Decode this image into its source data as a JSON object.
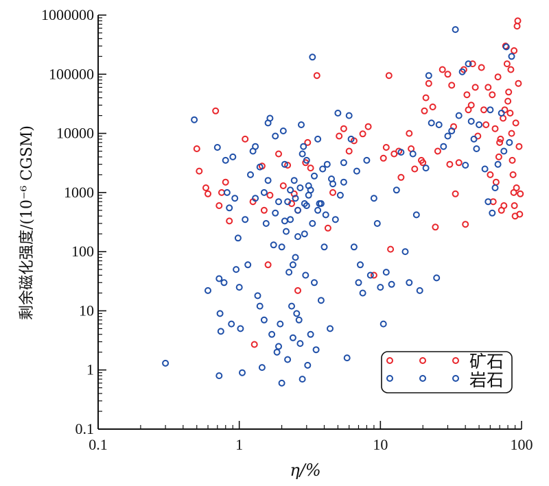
{
  "chart_data": {
    "type": "scatter",
    "xlabel": "η/%",
    "ylabel": "剩余磁化强度/(10⁻⁶ CGSM)",
    "x_scale": "log",
    "y_scale": "log",
    "xlim": [
      0.1,
      100
    ],
    "ylim": [
      0.1,
      1000000
    ],
    "x_tick_labels": [
      "0.1",
      "1",
      "10",
      "100"
    ],
    "y_tick_labels": [
      "0.1",
      "1",
      "10",
      "100",
      "1000",
      "10000",
      "100000",
      "1000000"
    ],
    "legend_position": "bottom-right",
    "series": [
      {
        "name": "矿石",
        "color": "#e8262c",
        "points": [
          [
            0.68,
            24000
          ],
          [
            0.5,
            5500
          ],
          [
            0.52,
            2300
          ],
          [
            0.58,
            1200
          ],
          [
            0.6,
            950
          ],
          [
            0.75,
            1000
          ],
          [
            0.72,
            600
          ],
          [
            0.8,
            1500
          ],
          [
            0.85,
            330
          ],
          [
            1.1,
            8000
          ],
          [
            1.25,
            700
          ],
          [
            1.45,
            2800
          ],
          [
            1.5,
            500
          ],
          [
            1.65,
            900
          ],
          [
            1.9,
            4500
          ],
          [
            2.05,
            1300
          ],
          [
            2.2,
            2900
          ],
          [
            2.35,
            650
          ],
          [
            2.45,
            950
          ],
          [
            2.6,
            500
          ],
          [
            2.95,
            3200
          ],
          [
            3.05,
            7000
          ],
          [
            3.2,
            2600
          ],
          [
            3.55,
            95000
          ],
          [
            1.28,
            2.7
          ],
          [
            1.6,
            60
          ],
          [
            2.6,
            22
          ],
          [
            4.25,
            250
          ],
          [
            4.6,
            1000
          ],
          [
            5.1,
            9000
          ],
          [
            5.5,
            12000
          ],
          [
            6.0,
            5000
          ],
          [
            6.5,
            7500
          ],
          [
            7.5,
            9800
          ],
          [
            8.2,
            13000
          ],
          [
            9.0,
            40
          ],
          [
            10.5,
            3800
          ],
          [
            11.0,
            5800
          ],
          [
            11.5,
            95000
          ],
          [
            11.8,
            110
          ],
          [
            12.5,
            4500
          ],
          [
            13.5,
            5000
          ],
          [
            14.0,
            1800
          ],
          [
            16.0,
            10000
          ],
          [
            16.5,
            5500
          ],
          [
            17.5,
            2500
          ],
          [
            19.5,
            3500
          ],
          [
            20.0,
            3200
          ],
          [
            20.5,
            24000
          ],
          [
            21.0,
            40000
          ],
          [
            22.0,
            70000
          ],
          [
            23.5,
            28000
          ],
          [
            24.5,
            260
          ],
          [
            25.5,
            5000
          ],
          [
            27.5,
            120000
          ],
          [
            30.0,
            100000
          ],
          [
            31.0,
            3000
          ],
          [
            32.0,
            65000
          ],
          [
            33.0,
            13000
          ],
          [
            34.0,
            950
          ],
          [
            36.0,
            3200
          ],
          [
            39.0,
            120000
          ],
          [
            40.0,
            290
          ],
          [
            41.0,
            45000
          ],
          [
            42.0,
            25000
          ],
          [
            44.0,
            30000
          ],
          [
            45.0,
            150000
          ],
          [
            47.0,
            60000
          ],
          [
            49.0,
            9000
          ],
          [
            52.0,
            130000
          ],
          [
            54.0,
            25000
          ],
          [
            56.0,
            14000
          ],
          [
            58.0,
            60000
          ],
          [
            60.0,
            2000
          ],
          [
            62.0,
            45000
          ],
          [
            65.0,
            12000
          ],
          [
            68.0,
            90000
          ],
          [
            70.0,
            7000
          ],
          [
            72.0,
            500
          ],
          [
            75.0,
            600
          ],
          [
            77.0,
            300000
          ],
          [
            79.0,
            150000
          ],
          [
            81.0,
            50000
          ],
          [
            83.0,
            22000
          ],
          [
            85.0,
            10000
          ],
          [
            86.0,
            3500
          ],
          [
            87.0,
            2000
          ],
          [
            88.0,
            1000
          ],
          [
            89.0,
            600
          ],
          [
            90.0,
            400
          ],
          [
            91.0,
            15000
          ],
          [
            92.0,
            1200
          ],
          [
            93.0,
            650000
          ],
          [
            94.0,
            800000
          ],
          [
            95.0,
            70000
          ],
          [
            96.0,
            6000
          ],
          [
            97.0,
            430
          ],
          [
            98.0,
            950
          ],
          [
            88.5,
            250000
          ],
          [
            84.0,
            120000
          ],
          [
            80.0,
            35000
          ],
          [
            76.0,
            25000
          ],
          [
            74.0,
            18000
          ],
          [
            71.0,
            8000
          ],
          [
            69.0,
            4000
          ],
          [
            66.0,
            1500
          ],
          [
            63.0,
            700
          ]
        ]
      },
      {
        "name": "岩石",
        "color": "#1f4fa8",
        "points": [
          [
            0.3,
            1.3
          ],
          [
            0.48,
            17000
          ],
          [
            0.6,
            22
          ],
          [
            0.7,
            5800
          ],
          [
            0.72,
            35
          ],
          [
            0.73,
            9
          ],
          [
            0.74,
            4.5
          ],
          [
            0.72,
            0.8
          ],
          [
            0.78,
            30
          ],
          [
            0.8,
            3500
          ],
          [
            0.82,
            1000
          ],
          [
            0.85,
            550
          ],
          [
            0.88,
            6
          ],
          [
            0.9,
            4000
          ],
          [
            0.93,
            800
          ],
          [
            0.95,
            50
          ],
          [
            0.98,
            170
          ],
          [
            1.0,
            25
          ],
          [
            1.02,
            5
          ],
          [
            1.05,
            0.9
          ],
          [
            1.1,
            350
          ],
          [
            1.15,
            60
          ],
          [
            1.2,
            2000
          ],
          [
            1.25,
            5000
          ],
          [
            1.3,
            6000
          ],
          [
            1.35,
            18
          ],
          [
            1.4,
            12
          ],
          [
            1.45,
            1.1
          ],
          [
            1.5,
            7
          ],
          [
            1.55,
            300
          ],
          [
            1.6,
            15000
          ],
          [
            1.65,
            18000
          ],
          [
            1.7,
            4
          ],
          [
            1.75,
            130
          ],
          [
            1.8,
            9000
          ],
          [
            1.85,
            2
          ],
          [
            1.9,
            2.5
          ],
          [
            1.95,
            6
          ],
          [
            2.0,
            0.6
          ],
          [
            2.05,
            11000
          ],
          [
            2.1,
            3000
          ],
          [
            2.15,
            220
          ],
          [
            2.2,
            1.5
          ],
          [
            2.25,
            45
          ],
          [
            2.3,
            1100
          ],
          [
            2.35,
            12
          ],
          [
            2.4,
            3.5
          ],
          [
            2.45,
            1600
          ],
          [
            2.5,
            80
          ],
          [
            2.55,
            9
          ],
          [
            2.6,
            500
          ],
          [
            2.65,
            7
          ],
          [
            2.7,
            2.8
          ],
          [
            2.75,
            14000
          ],
          [
            2.8,
            0.7
          ],
          [
            2.85,
            6000
          ],
          [
            2.9,
            200
          ],
          [
            2.95,
            40
          ],
          [
            3.0,
            3500
          ],
          [
            3.05,
            1.2
          ],
          [
            3.1,
            900
          ],
          [
            3.2,
            4
          ],
          [
            3.3,
            195000
          ],
          [
            3.4,
            30
          ],
          [
            3.5,
            2.2
          ],
          [
            3.6,
            8000
          ],
          [
            3.7,
            650
          ],
          [
            3.8,
            15
          ],
          [
            3.9,
            2500
          ],
          [
            4.0,
            120
          ],
          [
            4.2,
            3000
          ],
          [
            4.4,
            5
          ],
          [
            4.6,
            1400
          ],
          [
            4.8,
            350
          ],
          [
            5.0,
            22000
          ],
          [
            5.2,
            900
          ],
          [
            5.5,
            3200
          ],
          [
            5.8,
            1.6
          ],
          [
            6.0,
            20000
          ],
          [
            6.2,
            8000
          ],
          [
            6.5,
            120
          ],
          [
            6.8,
            2300
          ],
          [
            7.0,
            30
          ],
          [
            7.2,
            60
          ],
          [
            7.5,
            20
          ],
          [
            8.0,
            3500
          ],
          [
            8.5,
            40
          ],
          [
            9.0,
            800
          ],
          [
            9.5,
            300
          ],
          [
            10.0,
            25
          ],
          [
            10.5,
            6
          ],
          [
            11.0,
            45
          ],
          [
            12.0,
            28
          ],
          [
            13.0,
            1100
          ],
          [
            14.0,
            4800
          ],
          [
            15.0,
            100
          ],
          [
            16.0,
            30
          ],
          [
            17.0,
            4500
          ],
          [
            18.0,
            420
          ],
          [
            19.0,
            22
          ],
          [
            21.0,
            2600
          ],
          [
            22.0,
            95000
          ],
          [
            23.0,
            15000
          ],
          [
            25.0,
            36
          ],
          [
            26.0,
            14000
          ],
          [
            28.0,
            6000
          ],
          [
            30.0,
            9000
          ],
          [
            32.0,
            11000
          ],
          [
            34.0,
            570000
          ],
          [
            36.0,
            20000
          ],
          [
            38.0,
            110000
          ],
          [
            40.0,
            2900
          ],
          [
            42.0,
            150000
          ],
          [
            44.0,
            16000
          ],
          [
            46.0,
            8000
          ],
          [
            48.0,
            5500
          ],
          [
            50.0,
            14000
          ],
          [
            55.0,
            2500
          ],
          [
            58.0,
            700
          ],
          [
            60.0,
            25000
          ],
          [
            62.0,
            450
          ],
          [
            65.0,
            1200
          ],
          [
            68.0,
            3000
          ],
          [
            72.0,
            22000
          ],
          [
            75.0,
            5000
          ],
          [
            78.0,
            290000
          ],
          [
            82.0,
            7000
          ],
          [
            85.0,
            200000
          ],
          [
            1.3,
            800
          ],
          [
            1.9,
            700
          ],
          [
            2.2,
            700
          ],
          [
            2.6,
            180
          ],
          [
            2.9,
            650
          ],
          [
            3.3,
            300
          ],
          [
            3.6,
            500
          ],
          [
            4.1,
            420
          ],
          [
            1.6,
            1600
          ],
          [
            2.0,
            120
          ],
          [
            2.4,
            60
          ],
          [
            2.1,
            330
          ],
          [
            2.7,
            1200
          ],
          [
            3.1,
            1300
          ],
          [
            3.4,
            1900
          ],
          [
            3.0,
            600
          ],
          [
            2.5,
            800
          ],
          [
            2.3,
            350
          ],
          [
            1.8,
            450
          ],
          [
            1.5,
            1000
          ],
          [
            1.4,
            2700
          ],
          [
            2.8,
            4500
          ],
          [
            3.2,
            1100
          ],
          [
            3.8,
            650
          ],
          [
            4.5,
            1700
          ],
          [
            5.5,
            1500
          ]
        ]
      }
    ]
  }
}
